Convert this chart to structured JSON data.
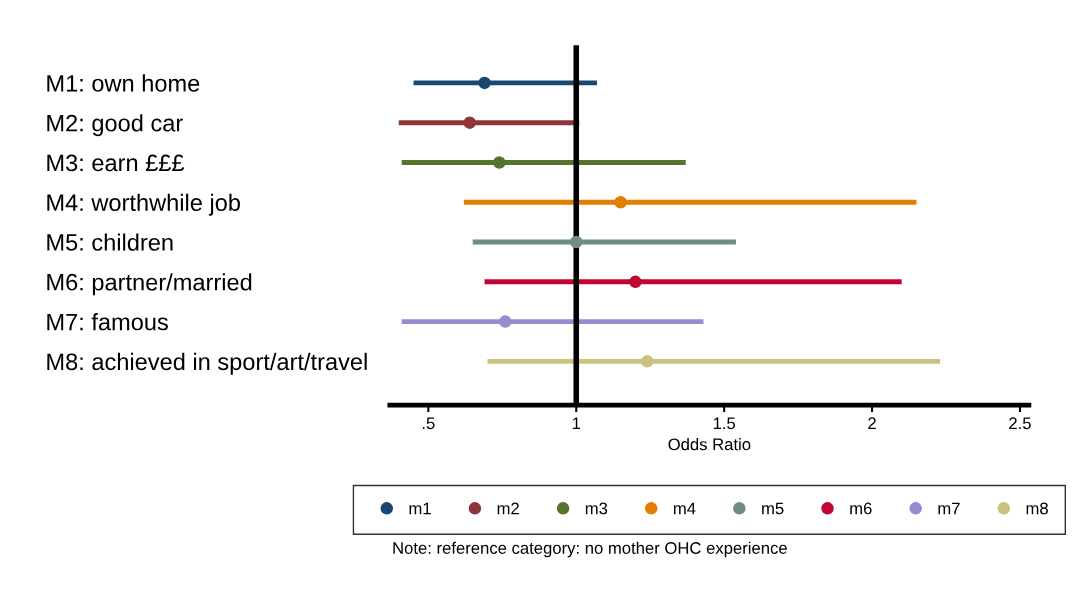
{
  "chart_data": {
    "type": "scatter",
    "orientation": "horizontal",
    "xlabel": "Odds Ratio",
    "categories": [
      "M1: own home",
      "M2: good car",
      "M3: earn £££",
      "M4: worthwhile job",
      "M5: children",
      "M6: partner/married",
      "M7: famous",
      "M8: achieved in sport/art/travel"
    ],
    "series": [
      {
        "name": "m1",
        "color": "#1a476f",
        "values": [
          0.69,
          null,
          null,
          null,
          null,
          null,
          null,
          null
        ],
        "errors": [
          [
            0.45,
            1.07
          ],
          null,
          null,
          null,
          null,
          null,
          null,
          null
        ]
      },
      {
        "name": "m2",
        "color": "#90353b",
        "values": [
          null,
          0.64,
          null,
          null,
          null,
          null,
          null,
          null
        ],
        "errors": [
          null,
          [
            0.4,
            1.01
          ],
          null,
          null,
          null,
          null,
          null,
          null
        ]
      },
      {
        "name": "m3",
        "color": "#55752f",
        "values": [
          null,
          null,
          0.74,
          null,
          null,
          null,
          null,
          null
        ],
        "errors": [
          null,
          null,
          [
            0.41,
            1.37
          ],
          null,
          null,
          null,
          null,
          null
        ]
      },
      {
        "name": "m4",
        "color": "#e37e00",
        "values": [
          null,
          null,
          null,
          1.15,
          null,
          null,
          null,
          null
        ],
        "errors": [
          null,
          null,
          null,
          [
            0.62,
            2.15
          ],
          null,
          null,
          null,
          null
        ]
      },
      {
        "name": "m5",
        "color": "#6e8e84",
        "values": [
          null,
          null,
          null,
          null,
          1.0,
          null,
          null,
          null
        ],
        "errors": [
          null,
          null,
          null,
          null,
          [
            0.65,
            1.54
          ],
          null,
          null,
          null
        ]
      },
      {
        "name": "m6",
        "color": "#c10534",
        "values": [
          null,
          null,
          null,
          null,
          null,
          1.2,
          null,
          null
        ],
        "errors": [
          null,
          null,
          null,
          null,
          null,
          [
            0.69,
            2.1
          ],
          null,
          null
        ]
      },
      {
        "name": "m7",
        "color": "#938dd2",
        "values": [
          null,
          null,
          null,
          null,
          null,
          null,
          0.76,
          null
        ],
        "errors": [
          null,
          null,
          null,
          null,
          null,
          null,
          [
            0.41,
            1.43
          ],
          null
        ]
      },
      {
        "name": "m8",
        "color": "#cac27e",
        "values": [
          null,
          null,
          null,
          null,
          null,
          null,
          null,
          1.24
        ],
        "errors": [
          null,
          null,
          null,
          null,
          null,
          null,
          null,
          [
            0.7,
            2.23
          ]
        ]
      }
    ],
    "xlim": [
      0.37,
      2.53
    ],
    "xticks": [
      {
        "value": 0.5,
        "label": ".5"
      },
      1,
      1.5,
      2,
      2.5
    ],
    "ref_lines": [
      {
        "axis": "x",
        "value": 1,
        "label": null,
        "color": "#000000"
      }
    ],
    "marker": "circle",
    "legend": "bottom",
    "grid": false,
    "annotations": [
      "Note: reference category: no mother OHC experience"
    ]
  }
}
